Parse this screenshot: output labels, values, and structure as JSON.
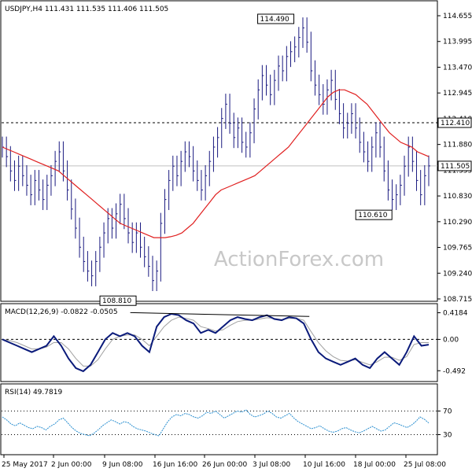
{
  "chart_data": {
    "type": "line",
    "title": "USDJPY,H4  111.431 111.535 111.406 111.505",
    "watermark": "ActionForex.com",
    "x_labels": [
      "25 May 2017",
      "2 Jun 00:00",
      "9 Jun 08:00",
      "16 Jun 16:00",
      "26 Jun 00:00",
      "3 Jul 08:00",
      "10 Jul 16:00",
      "18 Jul 00:00",
      "25 Jul 08:00"
    ],
    "price_panel": {
      "y_ticks": [
        "114.655",
        "113.995",
        "113.470",
        "112.945",
        "112.410",
        "111.880",
        "111.355",
        "110.830",
        "110.290",
        "109.765",
        "109.240",
        "108.715"
      ],
      "ylim": [
        108.715,
        114.655
      ],
      "current_price_label": "111.505",
      "current_price": 111.505,
      "resistance_label": "112.410",
      "resistance": 112.41,
      "annotations": [
        {
          "text": "114.490",
          "value": 114.49
        },
        {
          "text": "108.810",
          "value": 108.81
        },
        {
          "text": "110.610",
          "value": 110.61
        }
      ],
      "close": [
        111.9,
        111.7,
        111.4,
        111.2,
        111.5,
        111.3,
        111.1,
        110.9,
        111.2,
        111.0,
        110.8,
        111.1,
        111.3,
        111.6,
        111.8,
        111.4,
        111.0,
        110.6,
        110.2,
        109.8,
        109.5,
        109.3,
        109.2,
        109.5,
        109.8,
        110.1,
        110.4,
        110.2,
        110.5,
        110.7,
        110.4,
        110.1,
        109.9,
        110.1,
        109.8,
        109.6,
        109.4,
        109.1,
        109.3,
        110.3,
        110.8,
        111.2,
        111.5,
        111.3,
        111.6,
        111.8,
        111.7,
        111.4,
        111.2,
        111.0,
        111.3,
        111.6,
        111.9,
        112.1,
        112.5,
        112.8,
        112.4,
        112.1,
        112.3,
        112.0,
        111.9,
        112.2,
        112.7,
        113.1,
        113.4,
        113.2,
        113.0,
        113.3,
        113.6,
        113.5,
        113.8,
        113.9,
        114.0,
        114.2,
        114.4,
        114.1,
        113.5,
        113.2,
        113.0,
        112.8,
        113.1,
        113.3,
        112.9,
        112.6,
        112.3,
        112.4,
        112.6,
        112.3,
        112.0,
        111.8,
        111.6,
        111.9,
        112.2,
        111.9,
        111.4,
        111.0,
        110.8,
        110.9,
        111.1,
        111.5,
        111.9,
        111.6,
        111.2,
        110.9,
        111.3,
        111.505
      ],
      "ma": [
        111.9,
        111.85,
        111.8,
        111.75,
        111.7,
        111.65,
        111.6,
        111.55,
        111.5,
        111.45,
        111.4,
        111.3,
        111.2,
        111.1,
        111.0,
        110.9,
        110.8,
        110.7,
        110.6,
        110.5,
        110.4,
        110.3,
        110.25,
        110.2,
        110.15,
        110.1,
        110.05,
        110.0,
        110.0,
        110.0,
        110.02,
        110.05,
        110.1,
        110.2,
        110.3,
        110.45,
        110.6,
        110.75,
        110.9,
        111.0,
        111.05,
        111.1,
        111.15,
        111.2,
        111.25,
        111.3,
        111.4,
        111.5,
        111.6,
        111.7,
        111.8,
        111.9,
        112.05,
        112.2,
        112.35,
        112.5,
        112.65,
        112.8,
        112.95,
        113.05,
        113.1,
        113.1,
        113.05,
        113.0,
        112.9,
        112.8,
        112.65,
        112.5,
        112.35,
        112.2,
        112.1,
        112.0,
        111.95,
        111.9,
        111.8,
        111.75,
        111.7
      ]
    },
    "macd_panel": {
      "label": "MACD(12,26,9) -0.0822 -0.0505",
      "y_ticks": [
        "0.4184",
        "0.00",
        "-0.492"
      ],
      "ylim": [
        -0.6,
        0.45
      ],
      "macd": [
        0.0,
        -0.05,
        -0.1,
        -0.15,
        -0.2,
        -0.15,
        -0.1,
        0.05,
        -0.1,
        -0.3,
        -0.45,
        -0.5,
        -0.4,
        -0.2,
        0.0,
        0.1,
        0.05,
        0.1,
        0.05,
        -0.1,
        -0.2,
        0.2,
        0.35,
        0.4,
        0.38,
        0.3,
        0.25,
        0.1,
        0.15,
        0.1,
        0.2,
        0.3,
        0.35,
        0.32,
        0.3,
        0.35,
        0.38,
        0.32,
        0.3,
        0.35,
        0.33,
        0.25,
        0.0,
        -0.2,
        -0.3,
        -0.35,
        -0.4,
        -0.35,
        -0.3,
        -0.4,
        -0.45,
        -0.3,
        -0.2,
        -0.3,
        -0.4,
        -0.2,
        0.05,
        -0.1,
        -0.0822
      ],
      "signal": [
        0.0,
        -0.02,
        -0.05,
        -0.1,
        -0.15,
        -0.15,
        -0.12,
        -0.05,
        -0.05,
        -0.15,
        -0.3,
        -0.42,
        -0.42,
        -0.32,
        -0.15,
        0.0,
        0.05,
        0.07,
        0.07,
        0.0,
        -0.1,
        0.05,
        0.2,
        0.3,
        0.35,
        0.33,
        0.3,
        0.2,
        0.17,
        0.13,
        0.15,
        0.22,
        0.28,
        0.3,
        0.3,
        0.32,
        0.34,
        0.33,
        0.31,
        0.33,
        0.33,
        0.3,
        0.12,
        -0.05,
        -0.18,
        -0.27,
        -0.33,
        -0.34,
        -0.32,
        -0.36,
        -0.4,
        -0.35,
        -0.28,
        -0.28,
        -0.33,
        -0.27,
        -0.08,
        -0.05,
        -0.0505
      ],
      "trendline": [
        [
          0.3,
          0.42
        ],
        [
          0.72,
          0.36
        ]
      ]
    },
    "rsi_panel": {
      "label": "RSI(14) 49.7819",
      "y_ticks": [
        "70",
        "30"
      ],
      "ylim": [
        0,
        100
      ],
      "levels": [
        70,
        30
      ],
      "rsi": [
        60,
        55,
        48,
        45,
        50,
        46,
        42,
        40,
        44,
        42,
        38,
        44,
        48,
        55,
        58,
        50,
        42,
        36,
        32,
        30,
        28,
        32,
        38,
        45,
        50,
        55,
        52,
        48,
        52,
        50,
        44,
        40,
        38,
        36,
        33,
        30,
        28,
        40,
        52,
        60,
        64,
        62,
        66,
        64,
        60,
        58,
        62,
        68,
        66,
        70,
        64,
        58,
        62,
        66,
        70,
        68,
        72,
        64,
        60,
        62,
        65,
        70,
        66,
        60,
        58,
        62,
        66,
        58,
        52,
        48,
        44,
        40,
        42,
        45,
        40,
        36,
        34,
        36,
        40,
        42,
        38,
        35,
        33,
        36,
        40,
        44,
        40,
        36,
        38,
        44,
        50,
        48,
        45,
        42,
        46,
        52,
        60,
        56,
        49.7819
      ]
    }
  },
  "colors": {
    "price": "#1a1a80",
    "ma": "#e02020",
    "macd": "#0a1a7a",
    "signal": "#a0a0a0",
    "grid_dash": "#000000",
    "watermark": "#c8c8c8"
  }
}
